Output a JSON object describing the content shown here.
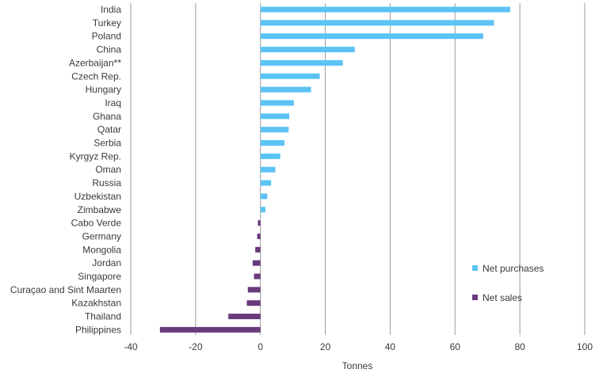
{
  "chart_data": {
    "type": "bar",
    "orientation": "horizontal",
    "xlabel": "Tonnes",
    "xlim": [
      -40,
      100
    ],
    "xticks": [
      -40,
      -20,
      0,
      20,
      40,
      60,
      80,
      100
    ],
    "grid": "vertical",
    "legend_position": "right",
    "categories": [
      "India",
      "Turkey",
      "Poland",
      "China",
      "Azerbaijan**",
      "Czech Rep.",
      "Hungary",
      "Iraq",
      "Ghana",
      "Qatar",
      "Serbia",
      "Kyrgyz Rep.",
      "Oman",
      "Russia",
      "Uzbekistan",
      "Zimbabwe",
      "Cabo Verde",
      "Germany",
      "Mongolia",
      "Jordan",
      "Singapore",
      "Curaçao and Sint Maarten",
      "Kazakhstan",
      "Thailand",
      "Philippines"
    ],
    "values": [
      77,
      72,
      68.7,
      29.1,
      25.4,
      18.3,
      15.6,
      10.3,
      8.9,
      8.7,
      7.4,
      6.1,
      4.6,
      3.3,
      2.1,
      1.5,
      -0.8,
      -1.0,
      -1.6,
      -2.4,
      -2.0,
      -3.9,
      -4.2,
      -9.9,
      -31.0
    ],
    "series": [
      {
        "name": "Net purchases",
        "color": "#5bc3f5"
      },
      {
        "name": "Net sales",
        "color": "#6b3a7d"
      }
    ]
  }
}
